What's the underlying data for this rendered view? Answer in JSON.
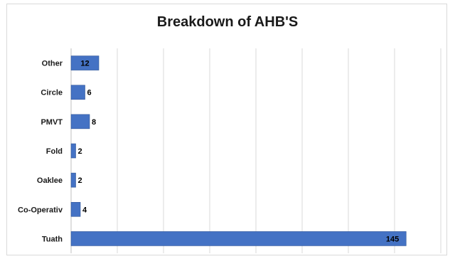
{
  "chart_data": {
    "type": "bar",
    "orientation": "horizontal",
    "title": "Breakdown of AHB'S",
    "categories": [
      "Other",
      "Circle",
      "PMVT",
      "Fold",
      "Oaklee",
      "Co-Operativ",
      "Tuath"
    ],
    "values": [
      12,
      6,
      8,
      2,
      2,
      4,
      145
    ],
    "data_labels": [
      "12",
      "6",
      "8",
      "2",
      "2",
      "4",
      "145"
    ],
    "xlim": [
      0,
      160
    ],
    "grid": true,
    "legend": "none",
    "colors": {
      "bar": "#4472c4",
      "bar_dark": "#2f5597",
      "grid": "#d9d9d9",
      "axis": "#bfbfbf"
    }
  }
}
